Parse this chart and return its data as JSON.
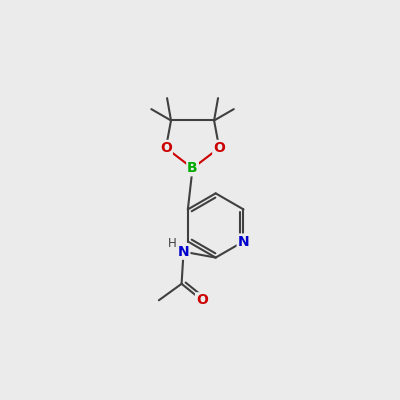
{
  "bg_color": "#ebebeb",
  "bond_color": "#404040",
  "bond_width": 1.5,
  "atom_colors": {
    "N": "#0000cc",
    "O": "#cc0000",
    "B": "#00aa00",
    "C": "#404040",
    "H": "#404040"
  },
  "font_size_atoms": 10,
  "font_size_H": 8.5
}
